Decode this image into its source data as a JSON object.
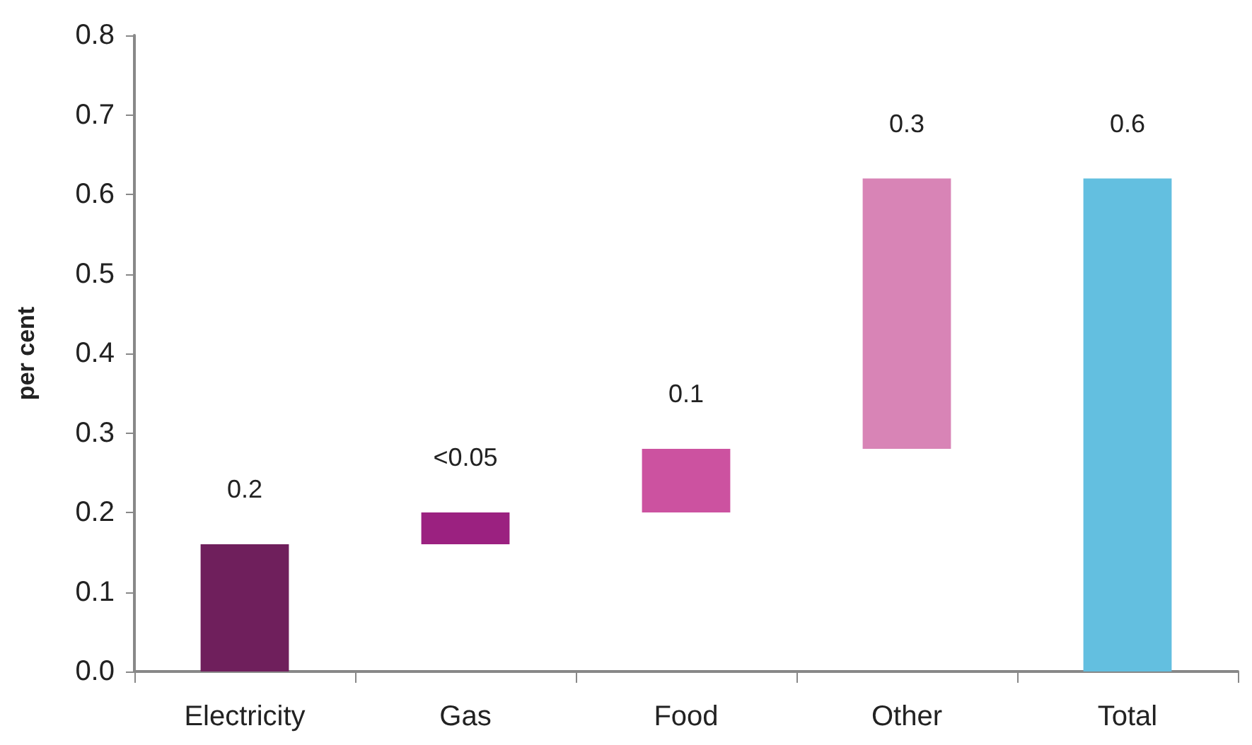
{
  "chart_data": {
    "type": "bar",
    "ylabel": "per cent",
    "categories": [
      "Electricity",
      "Gas",
      "Food",
      "Other",
      "Total"
    ],
    "base": [
      0,
      0.16,
      0.2,
      0.28,
      0
    ],
    "values": [
      0.16,
      0.04,
      0.08,
      0.34,
      0.62
    ],
    "colors": [
      "#6f1f5c",
      "#9b2180",
      "#cc52a0",
      "#d884b6",
      "#63bfe0"
    ],
    "value_labels": [
      "0.2",
      "<0.05",
      "0.1",
      "0.3",
      "0.6"
    ],
    "ylim": [
      0,
      0.8
    ],
    "yticks": [
      {
        "value": 0,
        "label": "0.0"
      },
      0.1,
      0.2,
      0.3,
      0.4,
      0.5,
      0.6,
      0.7,
      0.8
    ],
    "grid": false
  }
}
